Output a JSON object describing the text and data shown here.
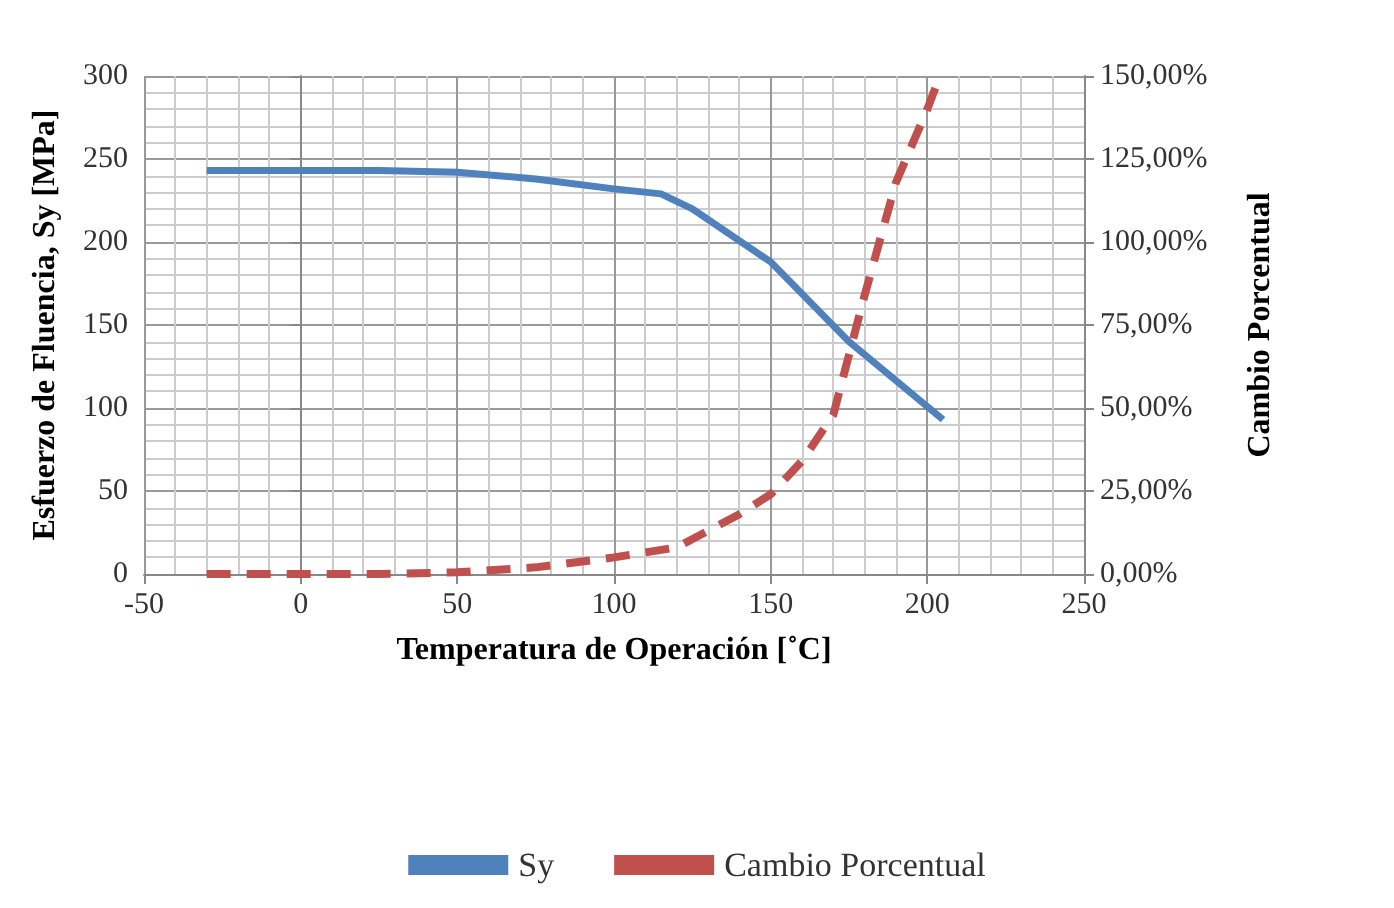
{
  "chart_data": {
    "type": "line",
    "xlabel": "Temperatura de Operación [˚C]",
    "ylabel": "Esfuerzo de Fluencia, Sy [MPa]",
    "y2label": "Cambio Porcentual",
    "xlim": [
      -50,
      250
    ],
    "xticks": [
      -50,
      0,
      50,
      100,
      150,
      200,
      250
    ],
    "ylim": [
      0,
      300
    ],
    "yticks": [
      0,
      50,
      100,
      150,
      200,
      250,
      300
    ],
    "y2lim": [
      0,
      150
    ],
    "y2ticks": [
      {
        "value": 0,
        "label": "0,00%"
      },
      {
        "value": 25,
        "label": "25,00%"
      },
      {
        "value": 50,
        "label": "50,00%"
      },
      {
        "value": 75,
        "label": "75,00%"
      },
      {
        "value": 100,
        "label": "100,00%"
      },
      {
        "value": 125,
        "label": "125,00%"
      },
      {
        "value": 150,
        "label": "150,00%"
      }
    ],
    "grid": true,
    "legend": "bottom",
    "marker": "none",
    "series": [
      {
        "name": "Sy",
        "color": "#4f81bd",
        "line_style": "solid",
        "x": [
          -30,
          0,
          25,
          50,
          75,
          100,
          115,
          125,
          150,
          175,
          205
        ],
        "values": [
          243,
          243,
          243,
          242,
          238,
          232,
          229,
          220,
          188,
          140,
          93
        ]
      },
      {
        "name": "Cambio Porcentual",
        "color": "#c0504d",
        "line_style": "dashed",
        "axis": "y2",
        "x": [
          -30,
          0,
          25,
          50,
          75,
          100,
          120,
          140,
          150,
          160,
          170,
          180,
          190,
          200,
          204
        ],
        "values": [
          0,
          0,
          0,
          0.5,
          2,
          5,
          8,
          18,
          24,
          34,
          48,
          84,
          118,
          140,
          150
        ]
      }
    ]
  }
}
